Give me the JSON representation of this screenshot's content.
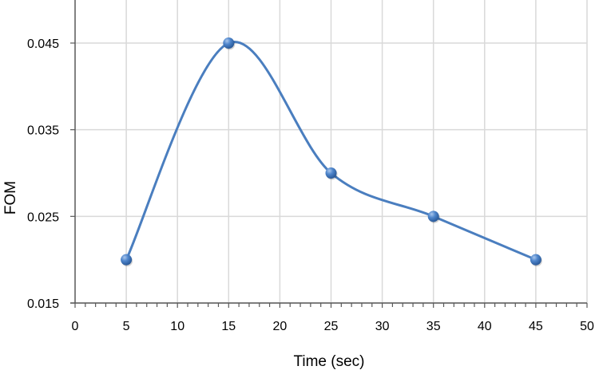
{
  "chart_data": {
    "type": "line",
    "title": "",
    "xlabel": "Time (sec)",
    "ylabel": "FOM",
    "xlim": [
      0,
      50
    ],
    "ylim": [
      0.015,
      0.05
    ],
    "x_ticks": [
      0,
      5,
      10,
      15,
      20,
      25,
      30,
      35,
      40,
      45,
      50
    ],
    "x_tick_labels": [
      "0",
      "5",
      "10",
      "15",
      "20",
      "25",
      "30",
      "35",
      "40",
      "45",
      "50"
    ],
    "y_ticks": [
      0.015,
      0.025,
      0.035,
      0.045
    ],
    "y_tick_labels": [
      "0.015",
      "0.025",
      "0.035",
      "0.045"
    ],
    "grid": true,
    "legend": null,
    "smooth": true,
    "series": [
      {
        "name": "FOM",
        "color": "#4a7ebf",
        "x": [
          5,
          15,
          25,
          35,
          45
        ],
        "values": [
          0.02,
          0.045,
          0.03,
          0.025,
          0.02
        ]
      }
    ]
  },
  "colors": {
    "line": "#4a7ebf",
    "marker": "#3d72b8",
    "grid": "#d9d9d9",
    "axis": "#595959"
  }
}
